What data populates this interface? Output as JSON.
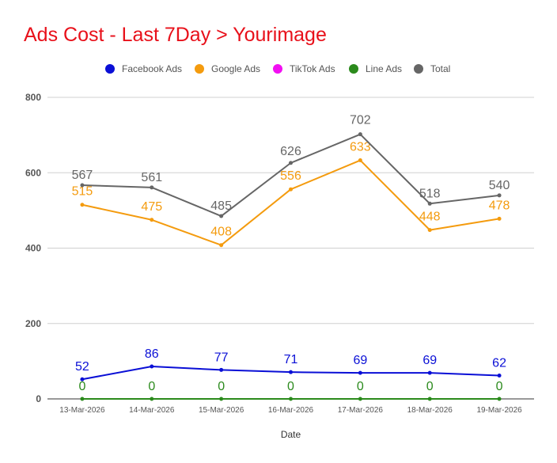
{
  "chart_data": {
    "type": "line",
    "title": "Ads Cost - Last 7Day > Yourimage",
    "xlabel": "Date",
    "ylabel": "",
    "ylim": [
      0,
      800
    ],
    "yticks": [
      0,
      200,
      400,
      600,
      800
    ],
    "grid": true,
    "legend_position": "top",
    "categories": [
      "13-Mar-2026",
      "14-Mar-2026",
      "15-Mar-2026",
      "16-Mar-2026",
      "17-Mar-2026",
      "18-Mar-2026",
      "19-Mar-2026"
    ],
    "series": [
      {
        "name": "Facebook Ads",
        "color": "#0a0fd6",
        "values": [
          52,
          86,
          77,
          71,
          69,
          69,
          62
        ]
      },
      {
        "name": "Google Ads",
        "color": "#f49b0e",
        "values": [
          515,
          475,
          408,
          556,
          633,
          448,
          478
        ]
      },
      {
        "name": "TikTok Ads",
        "color": "#f20ff2",
        "values": [
          null,
          null,
          null,
          null,
          null,
          null,
          null
        ]
      },
      {
        "name": "Line Ads",
        "color": "#2b8a1c",
        "values": [
          0,
          0,
          0,
          0,
          0,
          0,
          0
        ]
      },
      {
        "name": "Total",
        "color": "#666666",
        "values": [
          567,
          561,
          485,
          626,
          702,
          518,
          540
        ]
      }
    ]
  }
}
